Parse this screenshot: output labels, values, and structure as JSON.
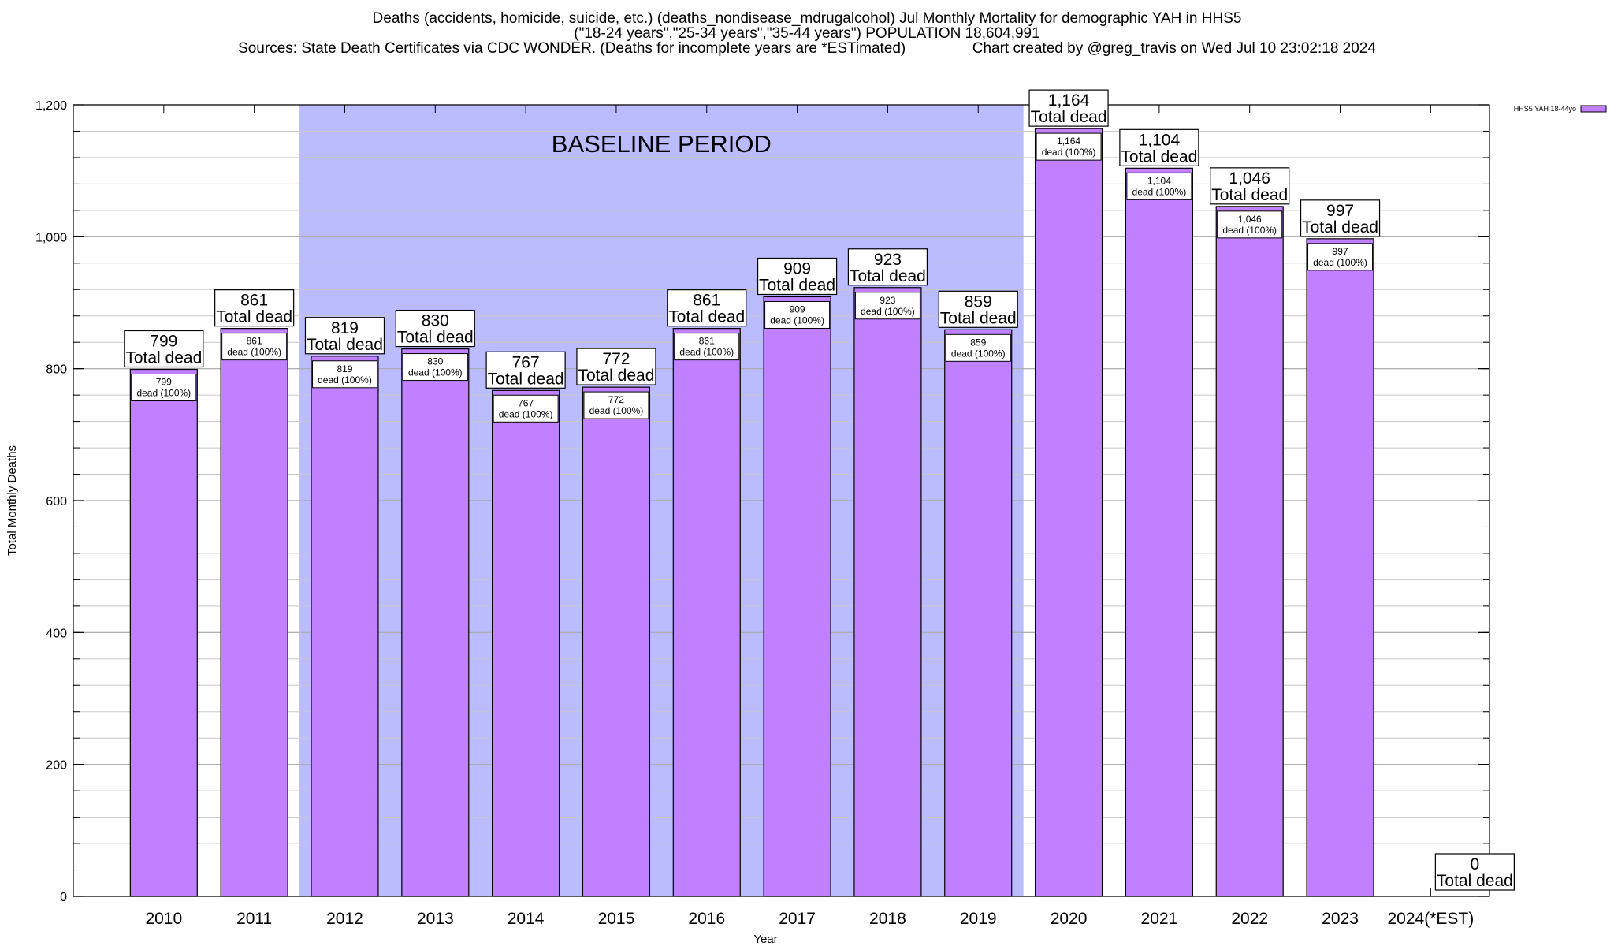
{
  "title": {
    "line1": "Deaths (accidents, homicide, suicide, etc.) (deaths_nondisease_mdrugalcohol) Jul Monthly Mortality for demographic YAH in HHS5",
    "line2": "(\"18-24 years\",\"25-34 years\",\"35-44 years\") POPULATION 18,604,991",
    "sources": "Sources: State Death Certificates via CDC WONDER. (Deaths for incomplete years are *ESTimated)",
    "credit": "Chart created by @greg_travis on Wed Jul 10 23:02:18 2024"
  },
  "colors": {
    "bar": "#c080ff",
    "baseline_band": "#bbbbff",
    "grid": "#c8c8c8"
  },
  "chart_data": {
    "type": "bar",
    "categories": [
      "2010",
      "2011",
      "2012",
      "2013",
      "2014",
      "2015",
      "2016",
      "2017",
      "2018",
      "2019",
      "2020",
      "2021",
      "2022",
      "2023",
      "2024(*EST)"
    ],
    "series": [
      {
        "name": "HHS5 YAH 18-44yo",
        "values": [
          799,
          861,
          819,
          830,
          767,
          772,
          861,
          909,
          923,
          859,
          1164,
          1104,
          1046,
          997,
          0
        ]
      }
    ],
    "value_labels": [
      "799",
      "861",
      "819",
      "830",
      "767",
      "772",
      "861",
      "909",
      "923",
      "859",
      "1,164",
      "1,104",
      "1,046",
      "997",
      "0"
    ],
    "top_label_suffix": "Total dead",
    "inner_label_suffix": "dead (100%)",
    "xlabel": "Year",
    "ylabel": "Total Monthly Deaths",
    "ylim": [
      0,
      1200
    ],
    "yticks": [
      0,
      200,
      400,
      600,
      800,
      1000,
      1200
    ],
    "ytick_labels": [
      "0",
      "200",
      "400",
      "600",
      "800",
      "1,000",
      "1,200"
    ],
    "minor_ytick_step": 40,
    "baseline_period": {
      "label": "BASELINE PERIOD",
      "from": "2012",
      "to": "2019"
    },
    "legend_position": "top-right",
    "grid": true
  }
}
